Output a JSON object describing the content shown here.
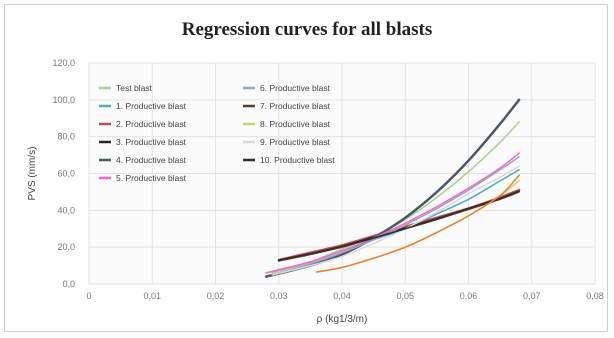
{
  "chart_data": {
    "type": "line",
    "title": "Regression curves for all blasts",
    "xlabel": "ρ (kg1/3/m)",
    "ylabel": "PVS (mm/s)",
    "xlim": [
      0,
      0.08
    ],
    "ylim": [
      0,
      120
    ],
    "xticks": [
      "0",
      "0,01",
      "0,02",
      "0,03",
      "0,04",
      "0,05",
      "0,06",
      "0,07",
      "0,08"
    ],
    "yticks": [
      "0,0",
      "20,0",
      "40,0",
      "60,0",
      "80,0",
      "100,0",
      "120,0"
    ],
    "grid": true,
    "legend_position": "top-left",
    "series": [
      {
        "name": "Test blast",
        "color": "#a9d18e",
        "width": 1.5,
        "x": [
          0.029,
          0.035,
          0.04,
          0.045,
          0.05,
          0.055,
          0.06,
          0.065,
          0.068
        ],
        "y": [
          6,
          12,
          19,
          26,
          35,
          47,
          61,
          77,
          88
        ]
      },
      {
        "name": "1. Productive blast",
        "color": "#4bacc6",
        "width": 1.5,
        "x": [
          0.028,
          0.035,
          0.04,
          0.045,
          0.05,
          0.055,
          0.06,
          0.065,
          0.068
        ],
        "y": [
          6,
          12,
          18,
          24,
          30,
          38,
          46,
          56,
          62
        ]
      },
      {
        "name": "2. Productive blast",
        "color": "#c0504d",
        "width": 2.5,
        "x": [
          0.03,
          0.035,
          0.04,
          0.045,
          0.05,
          0.055,
          0.06,
          0.065,
          0.068
        ],
        "y": [
          13,
          17,
          21,
          26,
          31,
          36,
          41,
          47,
          51
        ]
      },
      {
        "name": "3. Productive blast",
        "color": "#262626",
        "width": 1.5,
        "x": [
          0.03,
          0.035,
          0.04,
          0.045,
          0.05,
          0.055,
          0.06,
          0.065,
          0.068
        ],
        "y": [
          13,
          16.5,
          20.5,
          25.5,
          30.5,
          35.5,
          41,
          46.5,
          50.5
        ]
      },
      {
        "name": "4. Productive blast",
        "color": "#4a5a63",
        "width": 2.5,
        "x": [
          0.028,
          0.035,
          0.04,
          0.045,
          0.05,
          0.055,
          0.06,
          0.065,
          0.068
        ],
        "y": [
          4,
          10,
          16,
          25,
          36,
          50,
          67,
          87,
          100
        ]
      },
      {
        "name": "5. Productive blast",
        "color": "#ff66cc",
        "width": 1.5,
        "x": [
          0.028,
          0.035,
          0.04,
          0.045,
          0.05,
          0.055,
          0.06,
          0.065,
          0.068
        ],
        "y": [
          6,
          12,
          18,
          25,
          33,
          42,
          52,
          63,
          71
        ]
      },
      {
        "name": "6. Productive blast",
        "color": "#8ea9c1",
        "width": 1.5,
        "x": [
          0.029,
          0.035,
          0.04,
          0.045,
          0.05,
          0.055,
          0.06,
          0.065,
          0.068
        ],
        "y": [
          5,
          11,
          17,
          24,
          32,
          41,
          51,
          62,
          69
        ]
      },
      {
        "name": "7. Productive blast",
        "color": "#5b3a29",
        "width": 1.5,
        "x": [
          0.03,
          0.035,
          0.04,
          0.045,
          0.05,
          0.055,
          0.06,
          0.065,
          0.068
        ],
        "y": [
          12.5,
          16,
          20,
          25,
          30,
          35,
          40.5,
          46,
          50
        ]
      },
      {
        "name": "8. Productive blast",
        "color": "#c9d46b",
        "width": 1.5,
        "x": [
          0.036,
          0.04,
          0.045,
          0.05,
          0.055,
          0.06,
          0.065,
          0.068
        ],
        "y": [
          6.5,
          9,
          14,
          20,
          28,
          37,
          48,
          56
        ]
      },
      {
        "name": "9. Productive blast",
        "color": "#d9d9d9",
        "width": 1.5,
        "x": [
          0.029,
          0.035,
          0.04,
          0.045,
          0.05,
          0.055,
          0.06,
          0.065,
          0.068
        ],
        "y": [
          5,
          10,
          15,
          22,
          30,
          39,
          49,
          58,
          64
        ]
      },
      {
        "name": "10. Productive blast",
        "color": "#2f2f2f",
        "width": 1.5,
        "x": [
          0.03,
          0.035,
          0.04,
          0.045,
          0.05,
          0.055,
          0.06,
          0.065,
          0.068
        ],
        "y": [
          13,
          16.5,
          20.5,
          25,
          30,
          35.5,
          41,
          46.5,
          50.5
        ]
      },
      {
        "name": "",
        "color": "#ed7d31",
        "width": 1.5,
        "x": [
          0.036,
          0.04,
          0.045,
          0.05,
          0.055,
          0.06,
          0.065,
          0.068
        ],
        "y": [
          6.5,
          9,
          14,
          20,
          28,
          37,
          48,
          59
        ]
      }
    ]
  }
}
